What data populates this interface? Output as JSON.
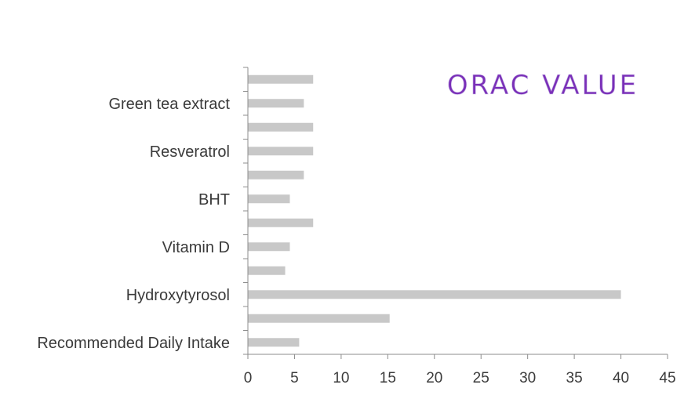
{
  "chart_data": {
    "type": "bar",
    "orientation": "horizontal",
    "title": "ORAC VALUE",
    "title_color": "#7a2fb8",
    "bar_color": "#c8c8c8",
    "axis_color": "#8c8c8c",
    "categories": [
      "",
      "Green tea extract",
      "",
      "Resveratrol",
      "",
      "BHT",
      "",
      "Vitamin D",
      "",
      "Hydroxytyrosol",
      "",
      "Recommended Daily Intake"
    ],
    "values": [
      7,
      6,
      7,
      7,
      6,
      4.5,
      7,
      4.5,
      4,
      40,
      15.2,
      5.5
    ],
    "xlim": [
      0,
      45
    ],
    "xticks": [
      "0",
      "5",
      "10",
      "15",
      "20",
      "25",
      "30",
      "35",
      "40",
      "45"
    ],
    "grid": false,
    "legend": "none"
  }
}
